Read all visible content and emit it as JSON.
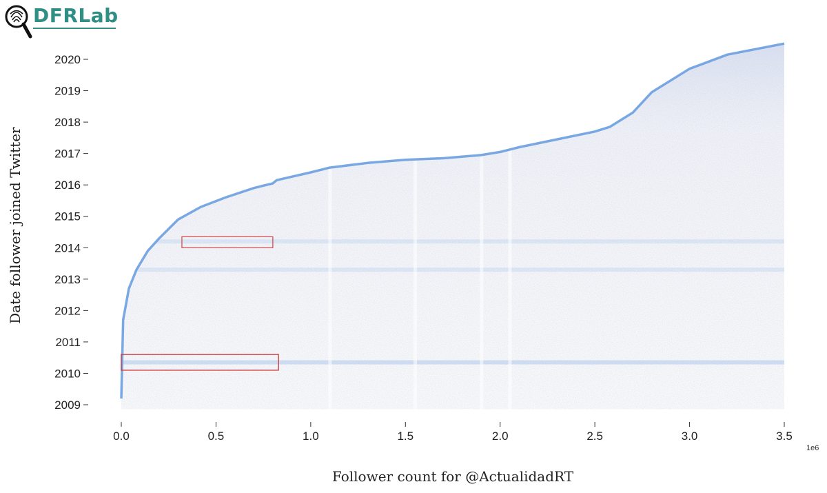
{
  "logo": {
    "text": "DFRLab",
    "icon": "fingerprint-magnifier-icon"
  },
  "chart_data": {
    "type": "scatter",
    "title": "",
    "xlabel": "Follower count for @ActualidadRT",
    "ylabel": "Date follower joined Twitter",
    "x_offset_label": "1e6",
    "xlim": [
      0,
      3.5
    ],
    "ylim": [
      2008.9,
      2020.6
    ],
    "x_ticks": [
      0.0,
      0.5,
      1.0,
      1.5,
      2.0,
      2.5,
      3.0,
      3.5
    ],
    "x_tick_labels": [
      "0.0",
      "0.5",
      "1.0",
      "1.5",
      "2.0",
      "2.5",
      "3.0",
      "3.5"
    ],
    "y_ticks": [
      2009,
      2010,
      2011,
      2012,
      2013,
      2014,
      2015,
      2016,
      2017,
      2018,
      2019,
      2020
    ],
    "y_tick_labels": [
      "2009",
      "2010",
      "2011",
      "2012",
      "2013",
      "2014",
      "2015",
      "2016",
      "2017",
      "2018",
      "2019",
      "2020"
    ],
    "grid": false,
    "point_color": "#6a9fe0",
    "frontier": {
      "x": [
        0.0,
        0.01,
        0.04,
        0.08,
        0.14,
        0.2,
        0.3,
        0.42,
        0.55,
        0.7,
        0.8,
        0.82,
        1.0,
        1.1,
        1.3,
        1.5,
        1.7,
        1.9,
        2.0,
        2.1,
        2.3,
        2.5,
        2.58,
        2.7,
        2.8,
        3.0,
        3.2,
        3.5
      ],
      "y": [
        2009.2,
        2011.7,
        2012.7,
        2013.3,
        2013.9,
        2014.3,
        2014.9,
        2015.3,
        2015.6,
        2015.9,
        2016.05,
        2016.15,
        2016.4,
        2016.55,
        2016.7,
        2016.8,
        2016.85,
        2016.95,
        2017.05,
        2017.2,
        2017.45,
        2017.7,
        2017.85,
        2018.3,
        2018.95,
        2019.7,
        2020.15,
        2020.5
      ]
    },
    "annotations": [
      {
        "shape": "rect",
        "x0": 0.32,
        "x1": 0.8,
        "y0": 2014.0,
        "y1": 2014.35,
        "color": "#d05050"
      },
      {
        "shape": "rect",
        "x0": 0.0,
        "x1": 0.83,
        "y0": 2010.1,
        "y1": 2010.6,
        "color": "#c83030"
      }
    ],
    "dense_bands_y": [
      2010.35,
      2013.3,
      2014.2
    ],
    "sparse_columns_x": [
      1.1,
      1.55,
      1.9,
      2.05
    ]
  }
}
